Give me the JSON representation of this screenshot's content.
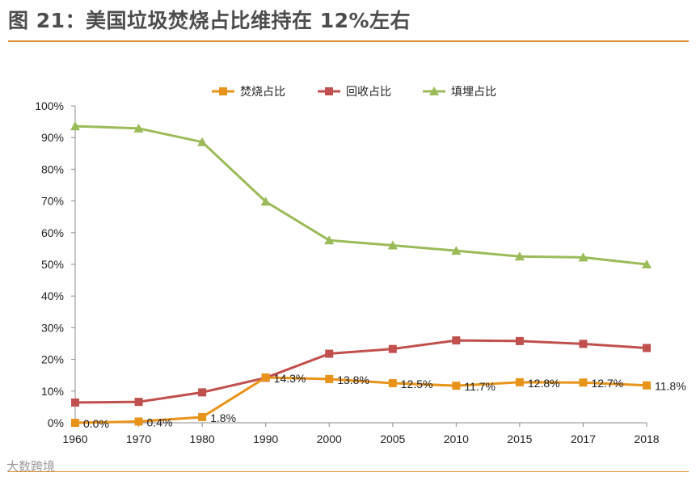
{
  "page": {
    "title": "图 21：美国垃圾焚烧占比维持在 12%左右",
    "watermark": "大数跨境"
  },
  "colors": {
    "accent": "#e08a2c",
    "incineration": "#e8941a",
    "recycling": "#c0504d",
    "landfill": "#9bbb59",
    "axis": "#8c8c8c",
    "text": "#222222"
  },
  "chart_data": {
    "type": "line",
    "title": "",
    "xlabel": "",
    "ylabel": "",
    "categories": [
      "1960",
      "1970",
      "1980",
      "1990",
      "2000",
      "2005",
      "2010",
      "2015",
      "2017",
      "2018"
    ],
    "ylim": [
      0,
      100
    ],
    "yticks": [
      "0%",
      "10%",
      "20%",
      "30%",
      "40%",
      "50%",
      "60%",
      "70%",
      "80%",
      "90%",
      "100%"
    ],
    "legend_position": "top",
    "series": [
      {
        "name": "焚烧占比",
        "key": "incineration",
        "marker": "square",
        "values": [
          0.0,
          0.4,
          1.8,
          14.3,
          13.8,
          12.5,
          11.7,
          12.8,
          12.7,
          11.8
        ],
        "labels": [
          "0.0%",
          "0.4%",
          "1.8%",
          "14.3%",
          "13.8%",
          "12.5%",
          "11.7%",
          "12.8%",
          "12.7%",
          "11.8%"
        ]
      },
      {
        "name": "回收占比",
        "key": "recycling",
        "marker": "square",
        "values": [
          6.4,
          6.6,
          9.6,
          14.2,
          21.8,
          23.3,
          26.0,
          25.8,
          24.9,
          23.6
        ]
      },
      {
        "name": "填埋占比",
        "key": "landfill",
        "marker": "triangle",
        "values": [
          93.6,
          92.9,
          88.6,
          69.8,
          57.6,
          56.0,
          54.3,
          52.5,
          52.2,
          50.0
        ]
      }
    ]
  }
}
